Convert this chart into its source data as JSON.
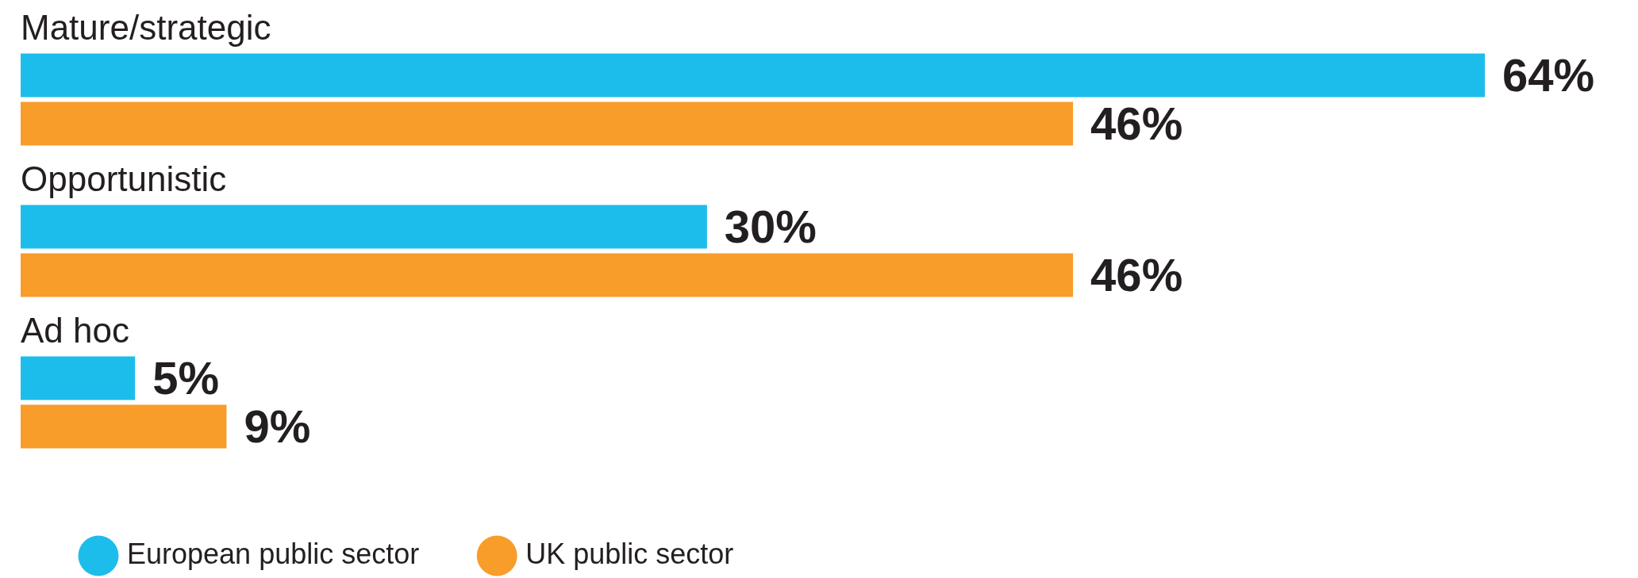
{
  "chart_data": {
    "type": "bar",
    "orientation": "horizontal",
    "categories": [
      "Mature/strategic",
      "Opportunistic",
      "Ad hoc"
    ],
    "series": [
      {
        "name": "European public sector",
        "color": "#1cbdea",
        "values": [
          64,
          30,
          5
        ],
        "value_labels": [
          "64%",
          "30%",
          "5%"
        ]
      },
      {
        "name": "UK public sector",
        "color": "#f89c2a",
        "values": [
          46,
          46,
          9
        ],
        "value_labels": [
          "46%",
          "46%",
          "9%"
        ]
      }
    ],
    "legend": "bottom left",
    "grid": false
  }
}
